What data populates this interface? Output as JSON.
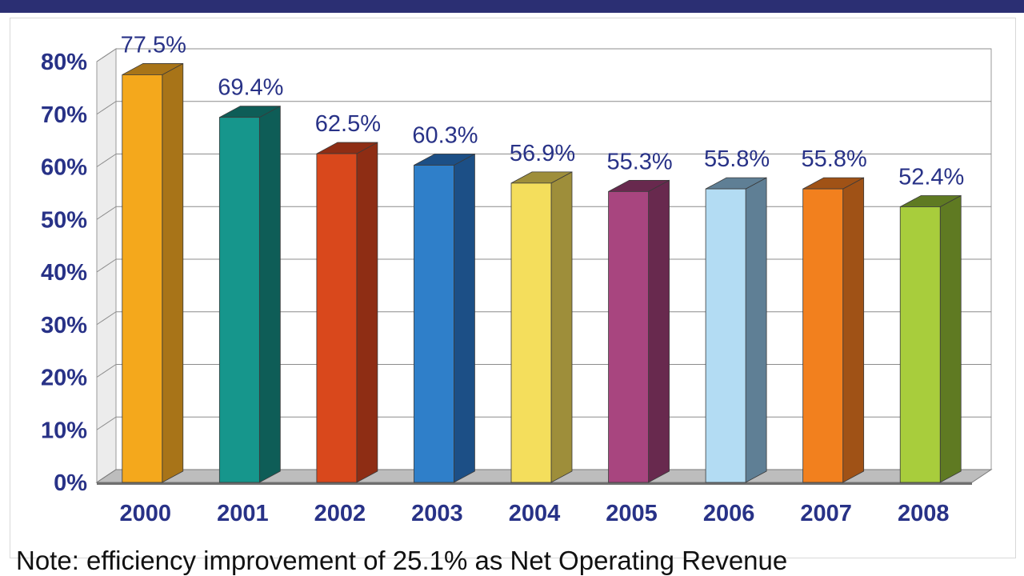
{
  "chart_data": {
    "type": "bar",
    "categories": [
      "2000",
      "2001",
      "2002",
      "2003",
      "2004",
      "2005",
      "2006",
      "2007",
      "2008"
    ],
    "values": [
      77.5,
      69.4,
      62.5,
      60.3,
      56.9,
      55.3,
      55.8,
      55.8,
      52.4
    ],
    "value_labels": [
      "77.5%",
      "69.4%",
      "62.5%",
      "60.3%",
      "56.9%",
      "55.3%",
      "55.8%",
      "55.8%",
      "52.4%"
    ],
    "y_ticks": [
      "0%",
      "10%",
      "20%",
      "30%",
      "40%",
      "50%",
      "60%",
      "70%",
      "80%"
    ],
    "ylim": [
      0,
      80
    ],
    "grid": true,
    "style": "3d-column",
    "bar_colors": [
      "#f4a81c",
      "#16968c",
      "#d9481c",
      "#2f7fc9",
      "#f4de5c",
      "#a8457f",
      "#b3dcf3",
      "#f2801e",
      "#a8cd3c"
    ],
    "bar_side_colors": [
      "#a87418",
      "#0e5d57",
      "#8e2d14",
      "#1c4f86",
      "#9e8e3a",
      "#68294e",
      "#5f7f95",
      "#a05216",
      "#5f7a22"
    ],
    "label_color": "#283287"
  },
  "note": "Note: efficiency improvement of 25.1% as Net Operating Revenue"
}
